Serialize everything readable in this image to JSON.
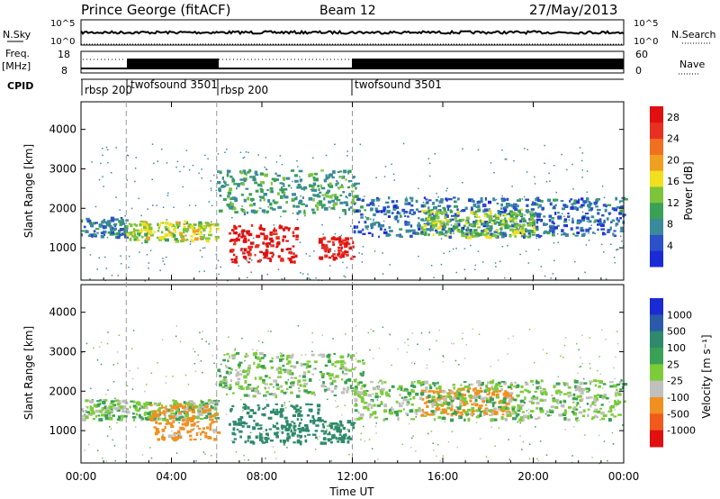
{
  "header": {
    "station": "Prince George (fitACF)",
    "beam": "Beam 12",
    "date": "27/May/2013"
  },
  "top_panels": {
    "nsky_label": "N.Sky",
    "nsky_ticks": [
      "10^5",
      "10^0"
    ],
    "nsearch_label": "N.Search",
    "nsearch_ticks": [
      "10^5",
      "10^0"
    ],
    "freq_label": "Freq.",
    "freq_unit": "[MHz]",
    "freq_ticks": [
      "18",
      "8"
    ],
    "nave_label": "Nave",
    "nave_ticks": [
      "60",
      "0"
    ],
    "cpid_label": "CPID",
    "cpid_segments": [
      {
        "label": "rbsp 200",
        "start_hour": 0
      },
      {
        "label": "twofsound 3501",
        "start_hour": 2
      },
      {
        "label": "rbsp 200",
        "start_hour": 6
      },
      {
        "label": "twofsound 3501",
        "start_hour": 12
      }
    ]
  },
  "colors": {
    "power": [
      "#1a2bd6",
      "#2b50c8",
      "#3b8a9c",
      "#3aa055",
      "#7cc43a",
      "#f0e020",
      "#f0a020",
      "#f07020",
      "#e83020",
      "#e01010"
    ],
    "velocity": [
      "#e01010",
      "#f05a1a",
      "#f09020",
      "#c0c0bc",
      "#7ccc3a",
      "#3aa055",
      "#2e8a6a",
      "#2a5aa8",
      "#1a2bd6"
    ]
  },
  "chart_data": [
    {
      "type": "heatmap",
      "panel": "power",
      "title": "",
      "ylabel": "Slant Range [km]",
      "xlabel": "",
      "xlim": [
        0,
        24
      ],
      "ylim": [
        180,
        4700
      ],
      "x_ticks": [
        "00:00",
        "04:00",
        "08:00",
        "12:00",
        "16:00",
        "20:00",
        "00:00"
      ],
      "y_ticks": [
        1000,
        2000,
        3000,
        4000
      ],
      "colorbar_label": "Power [dB]",
      "colorbar_ticks": [
        4,
        8,
        12,
        16,
        20,
        24,
        28
      ],
      "colorbar_range": [
        0,
        30
      ],
      "features": [
        {
          "t": [
            0.0,
            2.0
          ],
          "range": [
            1300,
            1800
          ],
          "value": 7
        },
        {
          "t": [
            2.0,
            6.0
          ],
          "range": [
            1200,
            1700
          ],
          "value": 15
        },
        {
          "t": [
            6.5,
            9.5
          ],
          "range": [
            650,
            1600
          ],
          "value": 29
        },
        {
          "t": [
            10.5,
            12.0
          ],
          "range": [
            750,
            1300
          ],
          "value": 28
        },
        {
          "t": [
            6.0,
            12.2
          ],
          "range": [
            1900,
            3000
          ],
          "value": 10
        },
        {
          "t": [
            12.0,
            24.0
          ],
          "range": [
            1300,
            2300
          ],
          "value": 6
        },
        {
          "t": [
            15.0,
            20.0
          ],
          "range": [
            1300,
            2000
          ],
          "value": 13
        }
      ]
    },
    {
      "type": "heatmap",
      "panel": "velocity",
      "title": "",
      "ylabel": "Slant Range [km]",
      "xlabel": "Time UT",
      "xlim": [
        0,
        24
      ],
      "ylim": [
        180,
        4700
      ],
      "x_ticks": [
        "00:00",
        "04:00",
        "08:00",
        "12:00",
        "16:00",
        "20:00",
        "00:00"
      ],
      "y_ticks": [
        1000,
        2000,
        3000,
        4000
      ],
      "colorbar_label": "Velocity [m s⁻¹]",
      "colorbar_ticks": [
        "1000",
        "500",
        "100",
        "25",
        "-25",
        "-100",
        "-500",
        "-1000"
      ],
      "features": [
        {
          "t": [
            0.0,
            6.0
          ],
          "range": [
            1300,
            1800
          ],
          "value": 0
        },
        {
          "t": [
            6.0,
            12.5
          ],
          "range": [
            1900,
            3000
          ],
          "value": 0
        },
        {
          "t": [
            3.0,
            6.0
          ],
          "range": [
            800,
            1700
          ],
          "value": -150
        },
        {
          "t": [
            6.5,
            10.5
          ],
          "range": [
            700,
            1700
          ],
          "value": 200
        },
        {
          "t": [
            10.5,
            12.0
          ],
          "range": [
            700,
            1300
          ],
          "value": 180
        },
        {
          "t": [
            15.0,
            19.0
          ],
          "range": [
            1400,
            2100
          ],
          "value": -200
        },
        {
          "t": [
            12.0,
            24.0
          ],
          "range": [
            1300,
            2300
          ],
          "value": 0
        }
      ]
    }
  ]
}
